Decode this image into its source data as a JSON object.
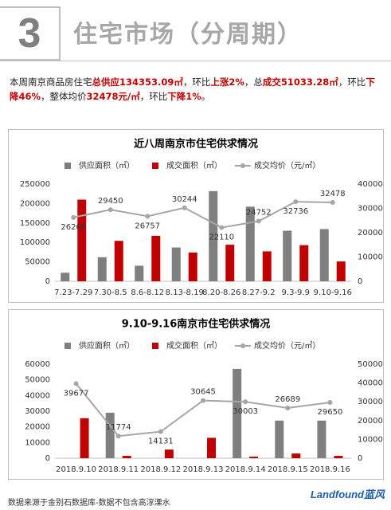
{
  "header": {
    "number": "3",
    "title": "住宅市场（分周期）"
  },
  "summary": [
    {
      "text": "本周南京商品房住宅",
      "highlight": false
    },
    {
      "text": "总供应134353.09㎡",
      "highlight": true
    },
    {
      "text": "，环比",
      "highlight": false
    },
    {
      "text": "上涨2%",
      "highlight": true
    },
    {
      "text": "，总",
      "highlight": false
    },
    {
      "text": "成交51033.28㎡",
      "highlight": true
    },
    {
      "text": "，环比",
      "highlight": false
    },
    {
      "text": "下降46%",
      "highlight": true
    },
    {
      "text": "，整体均价",
      "highlight": false
    },
    {
      "text": "32478元/㎡",
      "highlight": true
    },
    {
      "text": "，环比",
      "highlight": false
    },
    {
      "text": "下降1%",
      "highlight": true
    },
    {
      "text": "。",
      "highlight": false
    }
  ],
  "chart_data": [
    {
      "type": "combo",
      "title": "近八周南京市住宅供求情况",
      "categories": [
        "7.23-7.29",
        "7.30-8.5",
        "8.6-8.12",
        "8.13-8.19",
        "8.20-8.26",
        "8.27-9.2",
        "9.3-9.9",
        "9.10-9.16"
      ],
      "series": [
        {
          "name": "供应面积（㎡）",
          "mark": "bar",
          "color": "#7f7f7f",
          "values": [
            22000,
            62000,
            40000,
            87000,
            232000,
            192000,
            130000,
            134353
          ]
        },
        {
          "name": "成交面积（㎡）",
          "mark": "bar",
          "color": "#c00000",
          "values": [
            210000,
            104000,
            117000,
            74000,
            94000,
            77000,
            93000,
            51033
          ]
        },
        {
          "name": "成交均价（元/㎡）",
          "mark": "line",
          "axis": "y2",
          "color": "#a6a6a6",
          "values": [
            26268,
            29450,
            26757,
            30244,
            22110,
            24752,
            32736,
            32478
          ]
        }
      ],
      "ylim": [
        0,
        250000
      ],
      "yticks": [
        0,
        50000,
        100000,
        150000,
        200000,
        250000
      ],
      "y2lim": [
        0,
        40000
      ],
      "y2ticks": [
        0,
        10000,
        20000,
        30000,
        40000
      ]
    },
    {
      "type": "combo",
      "title": "9.10-9.16南京市住宅供求情况",
      "categories": [
        "2018.9.10",
        "2018.9.11",
        "2018.9.12",
        "2018.9.13",
        "2018.9.14",
        "2018.9.15",
        "2018.9.16"
      ],
      "series": [
        {
          "name": "供应面积（㎡）",
          "mark": "bar",
          "color": "#7f7f7f",
          "values": [
            0,
            29000,
            0,
            0,
            57000,
            24000,
            24000
          ]
        },
        {
          "name": "成交面积（㎡）",
          "mark": "bar",
          "color": "#c00000",
          "values": [
            25500,
            1500,
            5500,
            13000,
            1000,
            3000,
            1500
          ]
        },
        {
          "name": "成交均价（元/㎡）",
          "mark": "line",
          "axis": "y2",
          "color": "#a6a6a6",
          "values": [
            39677,
            11774,
            14131,
            30645,
            30003,
            26689,
            29650
          ]
        }
      ],
      "ylim": [
        0,
        60000
      ],
      "yticks": [
        0,
        10000,
        20000,
        30000,
        40000,
        50000,
        60000
      ],
      "y2lim": [
        0,
        50000
      ],
      "y2ticks": [
        0,
        10000,
        20000,
        30000,
        40000,
        50000
      ]
    }
  ],
  "footer": {
    "source": "数据来源于金别石数据库-数据不包含高淳溧水",
    "logo": "Landfound蓝风"
  }
}
